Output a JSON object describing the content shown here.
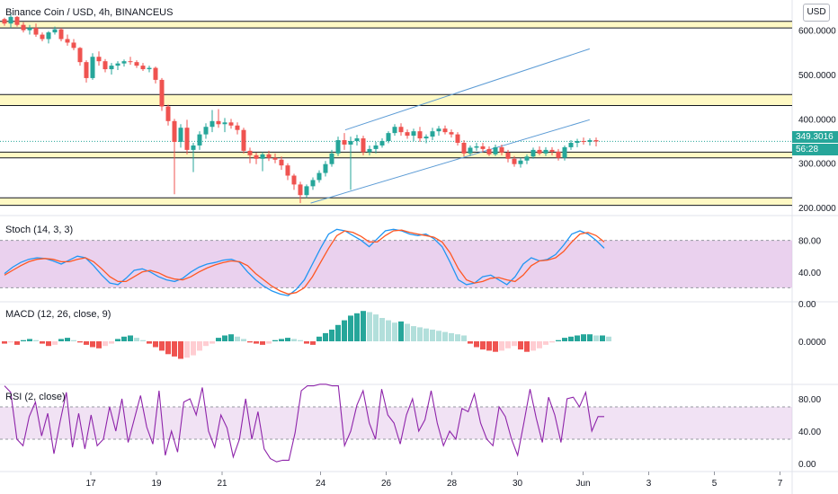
{
  "header": {
    "symbol_title": "Binance Coin / USD, 4h, BINANCEUS",
    "currency_button": "USD"
  },
  "price_tags": {
    "last_price": "349.3016",
    "countdown": "56:28",
    "tag_color": "#26a69a"
  },
  "x_axis": {
    "labels": [
      "17",
      "19",
      "21",
      "24",
      "26",
      "28",
      "30",
      "Jun",
      "3",
      "5",
      "7"
    ]
  },
  "colors": {
    "up": "#26a69a",
    "down": "#ef5350",
    "zone_fill": "#fff9c4",
    "channel_line": "#5b9bd5",
    "stoch_k": "#2196f3",
    "stoch_d": "#ff5722",
    "band_fill": "#e1bee7",
    "rsi_line": "#8e24aa",
    "macd_up_strong": "#26a69a",
    "macd_up_weak": "#b2dfdb",
    "macd_down_strong": "#ef5350",
    "macd_down_weak": "#ffcdd2"
  },
  "chart_data": [
    {
      "type": "candlestick",
      "title": "Binance Coin / USD, 4h, BINANCEUS",
      "y_ticks": [
        "600.0000",
        "500.0000",
        "400.0000",
        "300.0000",
        "200.0000"
      ],
      "ylim": [
        190,
        660
      ],
      "horizontal_zones": [
        [
          605,
          620
        ],
        [
          430,
          455
        ],
        [
          312,
          325
        ],
        [
          205,
          222
        ]
      ],
      "trend_lines": [
        {
          "from": [
            24.75,
            375
          ],
          "to": [
            32.2,
            558
          ]
        },
        {
          "from": [
            23.7,
            210
          ],
          "to": [
            32.2,
            398
          ]
        }
      ],
      "last_price": 349.3016,
      "candles": [
        [
          625,
          628,
          610,
          615
        ],
        [
          615,
          640,
          605,
          630
        ],
        [
          630,
          632,
          608,
          612
        ],
        [
          612,
          618,
          595,
          600
        ],
        [
          600,
          612,
          590,
          605
        ],
        [
          605,
          615,
          585,
          590
        ],
        [
          590,
          595,
          575,
          580
        ],
        [
          580,
          598,
          570,
          595
        ],
        [
          595,
          608,
          590,
          602
        ],
        [
          602,
          605,
          575,
          580
        ],
        [
          580,
          590,
          565,
          572
        ],
        [
          572,
          580,
          555,
          560
        ],
        [
          560,
          562,
          520,
          528
        ],
        [
          528,
          532,
          482,
          492
        ],
        [
          492,
          548,
          488,
          540
        ],
        [
          540,
          552,
          520,
          530
        ],
        [
          530,
          535,
          505,
          512
        ],
        [
          512,
          526,
          500,
          520
        ],
        [
          520,
          530,
          510,
          525
        ],
        [
          525,
          534,
          518,
          530
        ],
        [
          530,
          540,
          522,
          528
        ],
        [
          528,
          532,
          515,
          520
        ],
        [
          520,
          526,
          508,
          512
        ],
        [
          512,
          520,
          505,
          515
        ],
        [
          515,
          518,
          480,
          488
        ],
        [
          488,
          492,
          418,
          428
        ],
        [
          428,
          432,
          385,
          395
        ],
        [
          395,
          400,
          230,
          348
        ],
        [
          348,
          388,
          335,
          380
        ],
        [
          380,
          398,
          320,
          330
        ],
        [
          330,
          346,
          280,
          340
        ],
        [
          340,
          372,
          330,
          365
        ],
        [
          365,
          390,
          355,
          382
        ],
        [
          382,
          420,
          370,
          395
        ],
        [
          395,
          422,
          380,
          388
        ],
        [
          388,
          402,
          370,
          392
        ],
        [
          392,
          400,
          378,
          385
        ],
        [
          385,
          392,
          365,
          375
        ],
        [
          375,
          380,
          322,
          328
        ],
        [
          328,
          335,
          300,
          318
        ],
        [
          318,
          324,
          298,
          310
        ],
        [
          310,
          325,
          282,
          320
        ],
        [
          320,
          328,
          305,
          312
        ],
        [
          312,
          322,
          300,
          308
        ],
        [
          308,
          315,
          285,
          295
        ],
        [
          295,
          300,
          262,
          272
        ],
        [
          272,
          276,
          240,
          252
        ],
        [
          252,
          258,
          210,
          228
        ],
        [
          228,
          252,
          222,
          248
        ],
        [
          248,
          268,
          240,
          262
        ],
        [
          262,
          284,
          256,
          278
        ],
        [
          278,
          305,
          270,
          298
        ],
        [
          298,
          330,
          292,
          322
        ],
        [
          322,
          360,
          316,
          352
        ],
        [
          352,
          368,
          330,
          342
        ],
        [
          342,
          360,
          240,
          350
        ],
        [
          350,
          364,
          340,
          356
        ],
        [
          356,
          362,
          318,
          325
        ],
        [
          325,
          340,
          318,
          332
        ],
        [
          332,
          348,
          322,
          340
        ],
        [
          340,
          356,
          335,
          350
        ],
        [
          350,
          372,
          345,
          368
        ],
        [
          368,
          388,
          362,
          382
        ],
        [
          382,
          390,
          362,
          370
        ],
        [
          370,
          376,
          355,
          362
        ],
        [
          362,
          378,
          350,
          372
        ],
        [
          372,
          382,
          348,
          356
        ],
        [
          356,
          365,
          345,
          360
        ],
        [
          360,
          380,
          352,
          372
        ],
        [
          372,
          384,
          362,
          378
        ],
        [
          378,
          385,
          365,
          370
        ],
        [
          370,
          376,
          358,
          365
        ],
        [
          365,
          370,
          340,
          346
        ],
        [
          346,
          352,
          315,
          322
        ],
        [
          322,
          340,
          316,
          335
        ],
        [
          335,
          346,
          328,
          338
        ],
        [
          338,
          346,
          325,
          332
        ],
        [
          332,
          338,
          316,
          320
        ],
        [
          320,
          342,
          316,
          336
        ],
        [
          336,
          342,
          318,
          324
        ],
        [
          324,
          330,
          302,
          310
        ],
        [
          310,
          316,
          292,
          298
        ],
        [
          298,
          312,
          290,
          306
        ],
        [
          306,
          320,
          298,
          315
        ],
        [
          315,
          335,
          310,
          330
        ],
        [
          330,
          338,
          318,
          322
        ],
        [
          322,
          336,
          316,
          330
        ],
        [
          330,
          336,
          318,
          326
        ],
        [
          326,
          332,
          306,
          312
        ],
        [
          312,
          340,
          306,
          336
        ],
        [
          336,
          352,
          330,
          346
        ],
        [
          346,
          355,
          336,
          350
        ],
        [
          350,
          358,
          342,
          348
        ],
        [
          348,
          356,
          340,
          352
        ],
        [
          352,
          358,
          338,
          349
        ]
      ]
    },
    {
      "type": "line",
      "title": "Stoch (14, 3, 3)",
      "y_ticks": [
        "80.00",
        "40.00",
        "0.00"
      ],
      "ylim": [
        0,
        100
      ],
      "band": [
        20,
        80
      ],
      "series": [
        {
          "name": "",
          "values": [
            38,
            46,
            52,
            56,
            58,
            57,
            54,
            50,
            55,
            60,
            58,
            48,
            36,
            26,
            24,
            32,
            42,
            44,
            40,
            34,
            30,
            28,
            32,
            40,
            46,
            50,
            52,
            55,
            56,
            52,
            40,
            30,
            22,
            16,
            12,
            10,
            18,
            30,
            50,
            70,
            88,
            94,
            92,
            86,
            80,
            72,
            82,
            92,
            94,
            92,
            88,
            86,
            88,
            82,
            72,
            52,
            30,
            24,
            26,
            34,
            36,
            30,
            24,
            34,
            50,
            58,
            54,
            56,
            62,
            74,
            88,
            92,
            88,
            80,
            70
          ]
        },
        {
          "name": "",
          "values": [
            36,
            42,
            48,
            53,
            56,
            57,
            56,
            53,
            53,
            56,
            58,
            53,
            44,
            34,
            28,
            28,
            34,
            40,
            42,
            39,
            34,
            31,
            30,
            34,
            40,
            45,
            49,
            52,
            54,
            53,
            48,
            38,
            30,
            22,
            16,
            12,
            14,
            20,
            34,
            52,
            70,
            86,
            92,
            90,
            85,
            78,
            78,
            86,
            92,
            93,
            90,
            88,
            86,
            84,
            78,
            64,
            44,
            30,
            26,
            28,
            32,
            33,
            30,
            28,
            36,
            48,
            54,
            55,
            58,
            66,
            78,
            88,
            90,
            86,
            78
          ]
        }
      ]
    },
    {
      "type": "bar",
      "title": "MACD (12, 26, close, 9)",
      "y_ticks": [
        "0.0000"
      ],
      "values": [
        -2,
        -1,
        -3,
        1,
        2,
        1,
        -2,
        -4,
        -3,
        2,
        3,
        1,
        -1,
        -3,
        -5,
        -6,
        -4,
        -2,
        2,
        4,
        5,
        3,
        1,
        -2,
        -5,
        -8,
        -11,
        -13,
        -15,
        -14,
        -12,
        -8,
        -4,
        -2,
        3,
        5,
        6,
        4,
        2,
        -1,
        -2,
        -3,
        -2,
        1,
        2,
        3,
        2,
        1,
        -2,
        -3,
        4,
        7,
        10,
        14,
        18,
        22,
        24,
        26,
        25,
        23,
        20,
        18,
        16,
        17,
        15,
        13,
        12,
        11,
        10,
        9,
        8,
        7,
        6,
        5,
        -2,
        -5,
        -7,
        -8,
        -9,
        -8,
        -6,
        -4,
        -7,
        -9,
        -8,
        -6,
        -3,
        -1,
        1,
        3,
        4,
        5,
        6,
        6,
        5,
        5,
        4
      ]
    },
    {
      "type": "line",
      "title": "RSI (2, close)",
      "y_ticks": [
        "80.00",
        "40.00",
        "0.00"
      ],
      "ylim": [
        0,
        100
      ],
      "band": [
        30,
        70
      ],
      "values": [
        96,
        88,
        30,
        22,
        58,
        76,
        34,
        62,
        12,
        52,
        88,
        20,
        62,
        18,
        60,
        22,
        30,
        70,
        40,
        80,
        26,
        55,
        84,
        45,
        24,
        90,
        10,
        40,
        14,
        76,
        80,
        60,
        94,
        40,
        20,
        60,
        44,
        8,
        30,
        80,
        30,
        64,
        18,
        6,
        2,
        4,
        4,
        38,
        90,
        96,
        96,
        98,
        98,
        96,
        96,
        22,
        40,
        72,
        90,
        50,
        30,
        92,
        60,
        50,
        24,
        60,
        80,
        40,
        54,
        90,
        50,
        22,
        40,
        30,
        68,
        64,
        86,
        50,
        30,
        22,
        70,
        58,
        30,
        10,
        50,
        92,
        56,
        26,
        82,
        60,
        26,
        80,
        82,
        70,
        88,
        40,
        58,
        58
      ]
    }
  ]
}
